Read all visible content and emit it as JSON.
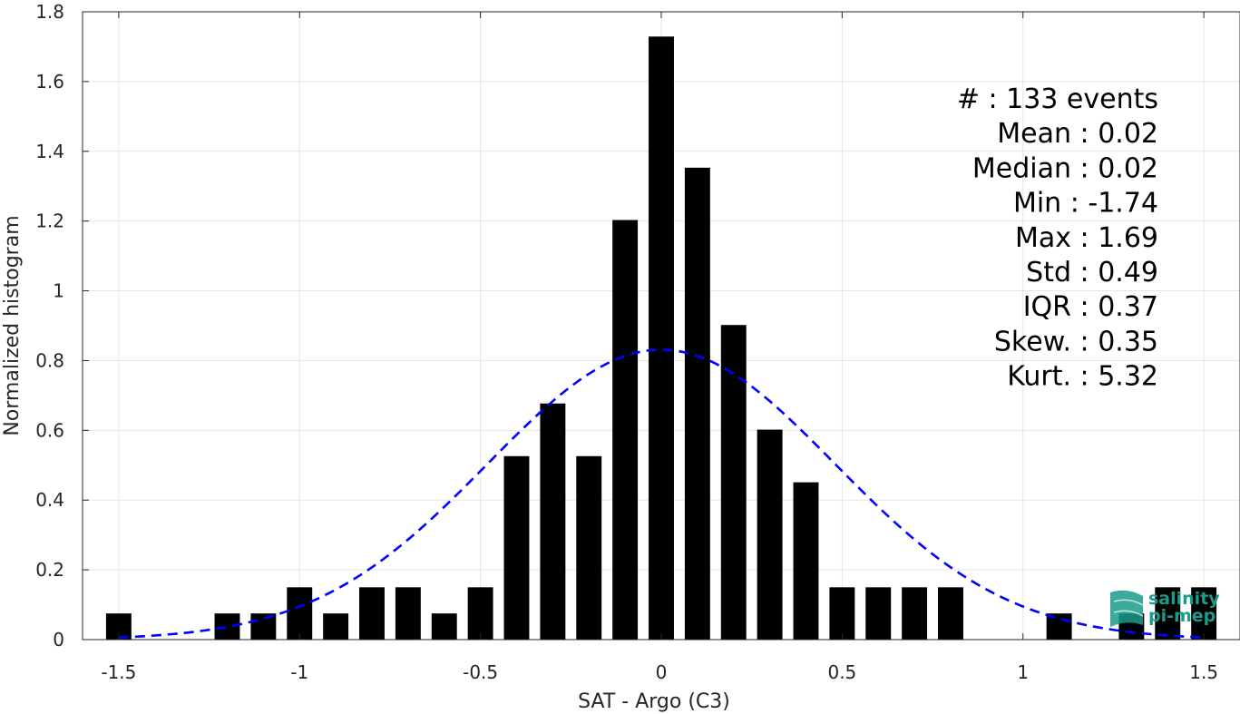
{
  "chart_data": {
    "type": "bar",
    "title": "",
    "xlabel": "SAT - Argo (C3)",
    "ylabel": "Normalized histogram",
    "xlim": [
      -1.6,
      1.6
    ],
    "ylim": [
      0,
      1.8
    ],
    "xticks": [
      -1.5,
      -1,
      -0.5,
      0,
      0.5,
      1,
      1.5
    ],
    "xtick_labels": [
      "-1.5",
      "-1",
      "-0.5",
      "0",
      "0.5",
      "1",
      "1.5"
    ],
    "yticks": [
      0,
      0.2,
      0.4,
      0.6,
      0.8,
      1,
      1.2,
      1.4,
      1.6,
      1.8
    ],
    "ytick_labels": [
      "0",
      "0.2",
      "0.4",
      "0.6",
      "0.8",
      "1",
      "1.2",
      "1.4",
      "1.6",
      "1.8"
    ],
    "grid": true,
    "bin_width": 0.07,
    "bar_color": "#000000",
    "bins": [
      {
        "x": -1.5,
        "y": 0.075
      },
      {
        "x": -1.2,
        "y": 0.075
      },
      {
        "x": -1.1,
        "y": 0.075
      },
      {
        "x": -1.0,
        "y": 0.15
      },
      {
        "x": -0.9,
        "y": 0.075
      },
      {
        "x": -0.8,
        "y": 0.15
      },
      {
        "x": -0.7,
        "y": 0.15
      },
      {
        "x": -0.6,
        "y": 0.075
      },
      {
        "x": -0.5,
        "y": 0.15
      },
      {
        "x": -0.4,
        "y": 0.526
      },
      {
        "x": -0.3,
        "y": 0.677
      },
      {
        "x": -0.2,
        "y": 0.526
      },
      {
        "x": -0.1,
        "y": 1.203
      },
      {
        "x": 0.0,
        "y": 1.729
      },
      {
        "x": 0.1,
        "y": 1.353
      },
      {
        "x": 0.2,
        "y": 0.902
      },
      {
        "x": 0.3,
        "y": 0.602
      },
      {
        "x": 0.4,
        "y": 0.451
      },
      {
        "x": 0.5,
        "y": 0.15
      },
      {
        "x": 0.6,
        "y": 0.15
      },
      {
        "x": 0.7,
        "y": 0.15
      },
      {
        "x": 0.8,
        "y": 0.15
      },
      {
        "x": 1.1,
        "y": 0.075
      },
      {
        "x": 1.3,
        "y": 0.075
      },
      {
        "x": 1.4,
        "y": 0.15
      },
      {
        "x": 1.5,
        "y": 0.15
      }
    ],
    "fit": {
      "type": "gaussian",
      "mean": 0.0,
      "std": 0.48,
      "x_range": [
        -1.5,
        1.5
      ],
      "color": "#0000ff",
      "style": "dashed"
    },
    "annotation": [
      "#  : 133 events",
      "Mean : 0.02",
      "Median : 0.02",
      "Min : -1.74",
      "Max : 1.69",
      "Std : 0.49",
      "IQR : 0.37",
      "Skew. : 0.35",
      "Kurt. : 5.32"
    ]
  },
  "logo": {
    "line1": "salinity",
    "line2": "pi-mep",
    "color": "#1a9c8c"
  }
}
